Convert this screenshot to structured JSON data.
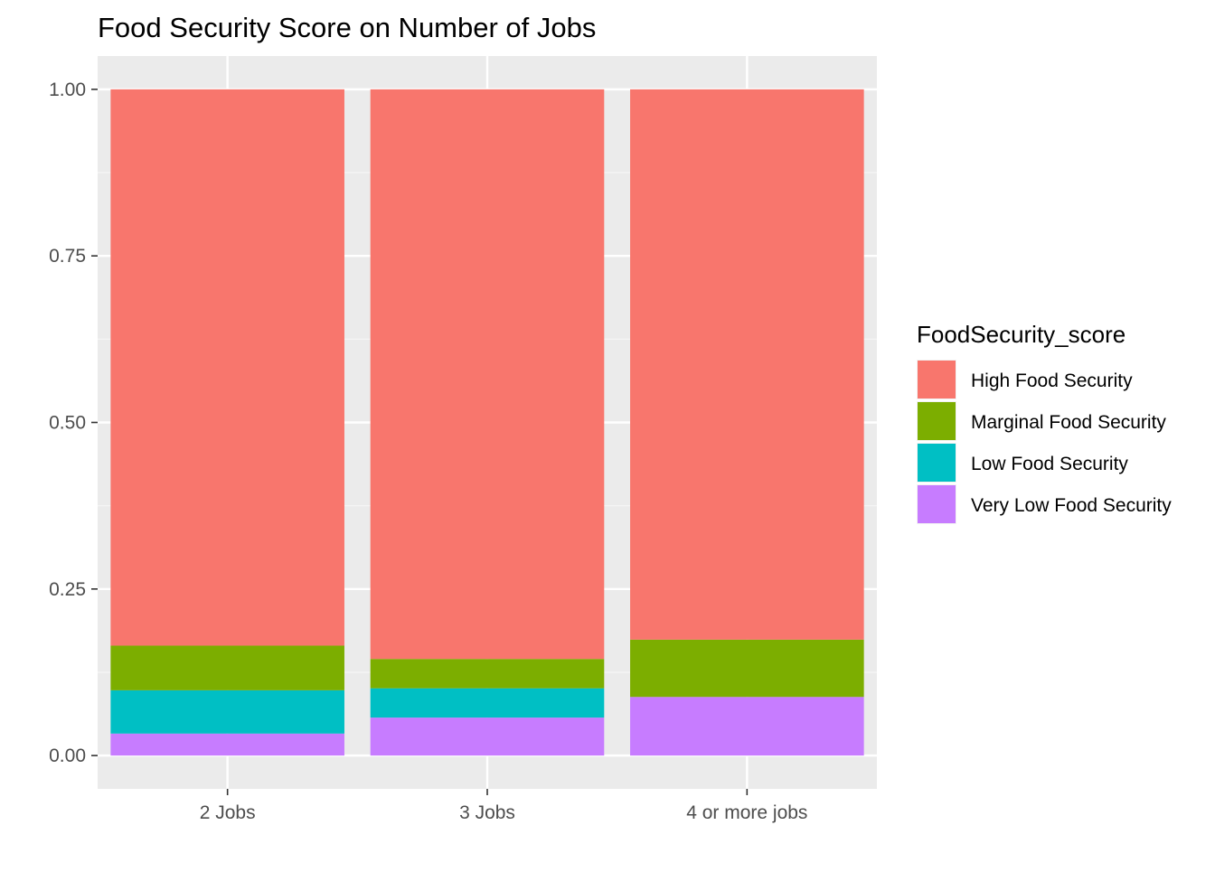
{
  "chart_data": {
    "type": "bar",
    "stacked": true,
    "title": "Food Security Score on Number of Jobs",
    "xlabel": "",
    "ylabel": "",
    "categories": [
      "2 Jobs",
      "3 Jobs",
      "4 or more jobs"
    ],
    "ylim": [
      -0.05,
      1.05
    ],
    "yticks": [
      0.0,
      0.25,
      0.5,
      0.75,
      1.0
    ],
    "ytick_labels": [
      "0.00",
      "0.25",
      "0.50",
      "0.75",
      "1.00"
    ],
    "grid": true,
    "legend": {
      "title": "FoodSecurity_score",
      "placement": "right",
      "entries": [
        "High Food Security",
        "Marginal Food Security",
        "Low Food Security",
        "Very Low Food Security"
      ]
    },
    "series": [
      {
        "name": "High Food Security",
        "color": "#F8766D",
        "values": [
          0.835,
          0.855,
          0.826
        ]
      },
      {
        "name": "Marginal Food Security",
        "color": "#7CAE00",
        "values": [
          0.067,
          0.044,
          0.086
        ]
      },
      {
        "name": "Low Food Security",
        "color": "#00BFC4",
        "values": [
          0.065,
          0.044,
          0.0
        ]
      },
      {
        "name": "Very Low Food Security",
        "color": "#C77CFF",
        "values": [
          0.033,
          0.057,
          0.088
        ]
      }
    ],
    "colors": {
      "panel_background": "#EBEBEB",
      "grid_major": "#FFFFFF",
      "grid_minor": "#F5F5F5",
      "tick_text": "#4D4D4D",
      "tick_mark": "#333333"
    }
  }
}
